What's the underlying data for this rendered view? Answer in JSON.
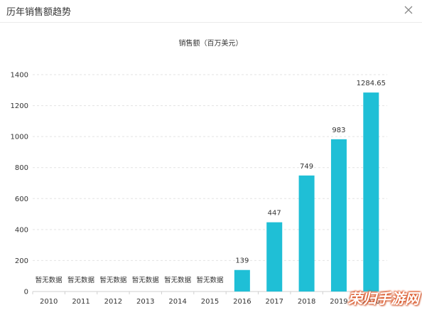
{
  "window": {
    "title": "历年销售额趋势",
    "close_icon": "close-icon"
  },
  "chart_data": {
    "type": "bar",
    "title": "销售额（百万美元）",
    "xlabel": "",
    "ylabel": "",
    "categories": [
      "2010",
      "2011",
      "2012",
      "2013",
      "2014",
      "2015",
      "2016",
      "2017",
      "2018",
      "2019",
      "2020"
    ],
    "values": [
      null,
      null,
      null,
      null,
      null,
      null,
      139,
      447,
      749,
      983,
      1284.65
    ],
    "data_labels": [
      "暂无数据",
      "暂无数据",
      "暂无数据",
      "暂无数据",
      "暂无数据",
      "暂无数据",
      "139",
      "447",
      "749",
      "983",
      "1284.65"
    ],
    "ylim": [
      0,
      1400
    ],
    "yticks": [
      0,
      200,
      400,
      600,
      800,
      1000,
      1200,
      1400
    ],
    "grid": true,
    "bar_color": "#1fbfd6"
  },
  "watermark": {
    "text": "荣归手游网"
  }
}
